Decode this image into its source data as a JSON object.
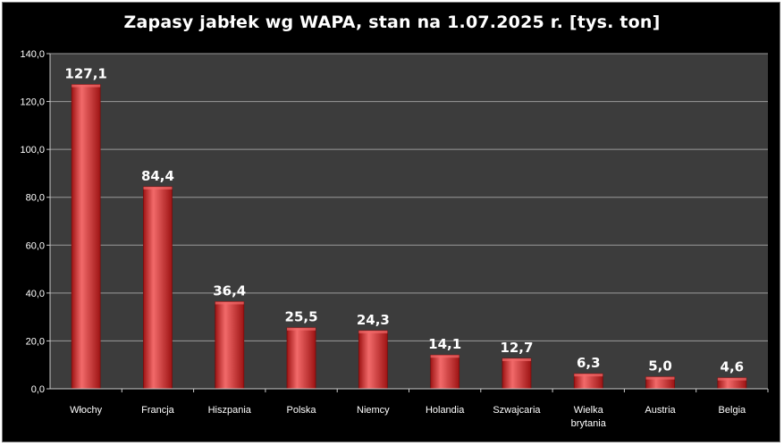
{
  "chart_data": {
    "type": "bar",
    "title": "Zapasy jabłek wg WAPA, stan na 1.07.2025 r. [tys. ton]",
    "categories": [
      "Włochy",
      "Francja",
      "Hiszpania",
      "Polska",
      "Niemcy",
      "Holandia",
      "Szwajcaria",
      "Wielka brytania",
      "Austria",
      "Belgia"
    ],
    "values": [
      127.1,
      84.4,
      36.4,
      25.5,
      24.3,
      14.1,
      12.7,
      6.3,
      5.0,
      4.6
    ],
    "data_labels": [
      "127,1",
      "84,4",
      "36,4",
      "25,5",
      "24,3",
      "14,1",
      "12,7",
      "6,3",
      "5,0",
      "4,6"
    ],
    "yticks": [
      0,
      20,
      40,
      60,
      80,
      100,
      120,
      140
    ],
    "ytick_labels": [
      "0,0",
      "20,0",
      "40,0",
      "60,0",
      "80,0",
      "100,0",
      "120,0",
      "140,0"
    ],
    "ylim": [
      0,
      140
    ],
    "xlabel": "",
    "ylabel": "",
    "grid": true,
    "colors": {
      "background": "#000000",
      "plot_area": "#3c3c3c",
      "gridline": "#9a9a9a",
      "bar_dark": "#9e1414",
      "bar_mid": "#d83434",
      "bar_light": "#f26a6a",
      "text": "#ffffff"
    }
  }
}
